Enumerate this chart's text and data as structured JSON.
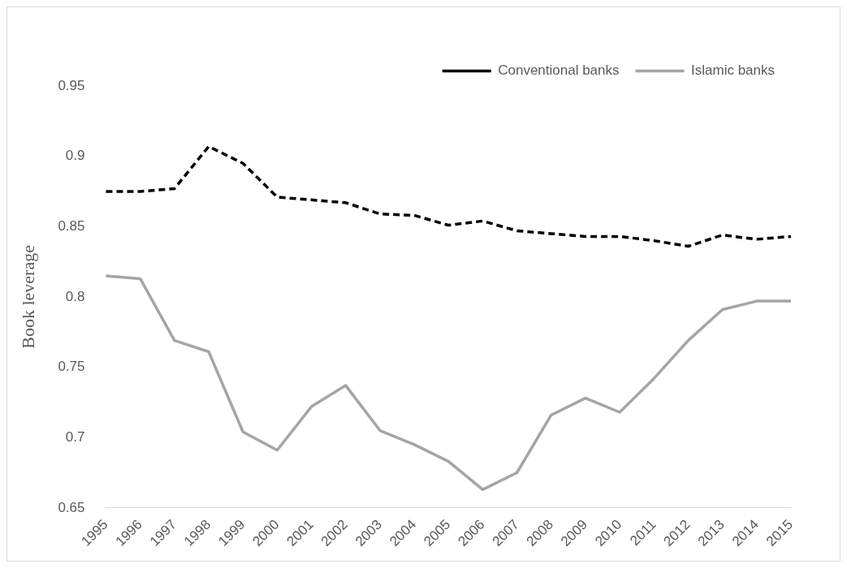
{
  "chart_data": {
    "type": "line",
    "ylabel": "Book leverage",
    "categories": [
      "1995",
      "1996",
      "1997",
      "1998",
      "1999",
      "2000",
      "2001",
      "2002",
      "2003",
      "2004",
      "2005",
      "2006",
      "2007",
      "2008",
      "2009",
      "2010",
      "2011",
      "2012",
      "2013",
      "2014",
      "2015"
    ],
    "series": [
      {
        "name": "Conventional banks",
        "color": "#000000",
        "line_style": "dashed",
        "values": [
          0.875,
          0.875,
          0.877,
          0.907,
          0.895,
          0.871,
          0.869,
          0.867,
          0.859,
          0.858,
          0.851,
          0.854,
          0.847,
          0.845,
          0.843,
          0.843,
          0.84,
          0.836,
          0.844,
          0.841,
          0.843
        ]
      },
      {
        "name": "Islamic banks",
        "color": "#a5a5a5",
        "line_style": "solid",
        "values": [
          0.815,
          0.813,
          0.769,
          0.761,
          0.704,
          0.691,
          0.722,
          0.737,
          0.705,
          0.695,
          0.683,
          0.663,
          0.675,
          0.716,
          0.728,
          0.718,
          0.742,
          0.769,
          0.791,
          0.797,
          0.797
        ]
      }
    ],
    "ylim": [
      0.65,
      0.95
    ],
    "yticks": [
      0.65,
      0.7,
      0.75,
      0.8,
      0.85,
      0.9,
      0.95
    ],
    "grid": false,
    "legend": "top right",
    "marker": "none"
  }
}
